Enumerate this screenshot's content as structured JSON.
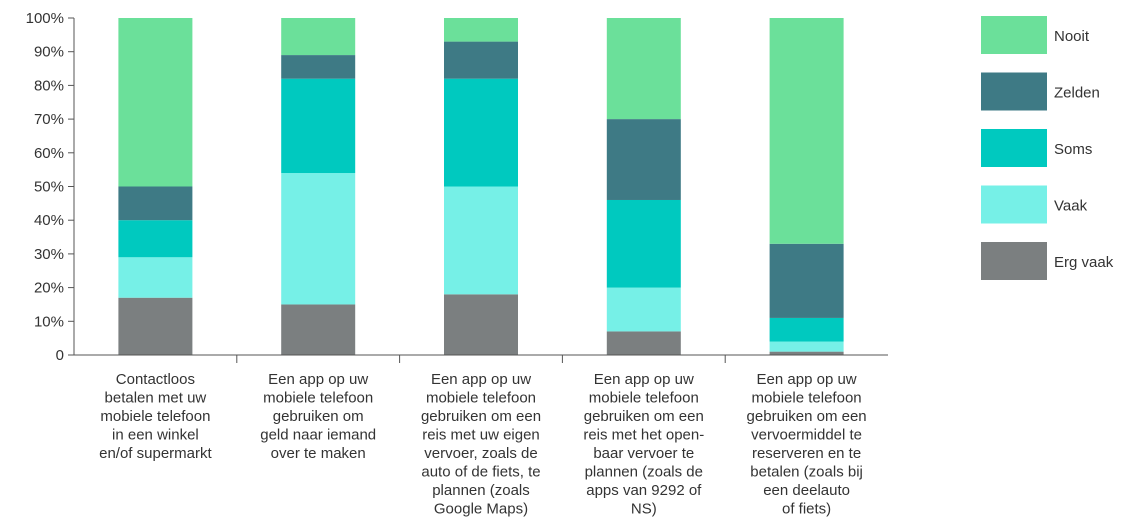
{
  "chart_data": {
    "type": "bar",
    "stacked": true,
    "y_tick_labels": [
      "0",
      "10%",
      "20%",
      "30%",
      "40%",
      "50%",
      "60%",
      "70%",
      "80%",
      "90%",
      "100%"
    ],
    "ylim": [
      0,
      100
    ],
    "grid": false,
    "legend_position": "right",
    "categories": [
      [
        "Contactloos",
        "betalen met uw",
        "mobiele telefoon",
        "in een winkel",
        "en/of supermarkt"
      ],
      [
        "Een app op uw",
        "mobiele telefoon",
        "gebruiken om",
        "geld naar iemand",
        "over te maken"
      ],
      [
        "Een app op uw",
        "mobiele telefoon",
        "gebruiken om een",
        "reis met uw eigen",
        "vervoer, zoals de",
        "auto of de fiets, te",
        "plannen (zoals",
        "Google Maps)"
      ],
      [
        "Een app op uw",
        "mobiele telefoon",
        "gebruiken om een",
        "reis met het open-",
        "baar vervoer te",
        "plannen (zoals de",
        "apps van 9292 of",
        "NS)"
      ],
      [
        "Een app op uw",
        "mobiele telefoon",
        "gebruiken om een",
        "vervoermiddel te",
        "reserveren en te",
        "betalen (zoals bij",
        "een deelauto",
        "of fiets)"
      ]
    ],
    "series": [
      {
        "name": "Erg vaak",
        "color": "#7b7f80",
        "values": [
          17,
          15,
          18,
          7,
          1
        ]
      },
      {
        "name": "Vaak",
        "color": "#76f0e7",
        "values": [
          12,
          39,
          32,
          13,
          3
        ]
      },
      {
        "name": "Soms",
        "color": "#00c9bf",
        "values": [
          11,
          28,
          32,
          26,
          7
        ]
      },
      {
        "name": "Zelden",
        "color": "#3e7a85",
        "values": [
          10,
          7,
          11,
          24,
          22
        ]
      },
      {
        "name": "Nooit",
        "color": "#6be09a",
        "values": [
          50,
          11,
          7,
          30,
          67
        ]
      }
    ],
    "legend_order": [
      "Nooit",
      "Zelden",
      "Soms",
      "Vaak",
      "Erg vaak"
    ]
  }
}
